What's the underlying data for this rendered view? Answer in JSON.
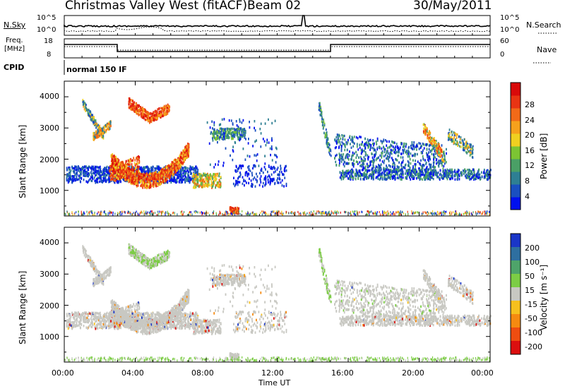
{
  "header": {
    "station": "Christmas Valley West (fitACF)",
    "beam": "Beam 02",
    "date": "30/May/2011"
  },
  "top_panels": {
    "nsky_label": "N.Sky",
    "nsky_tick_hi": "10^5",
    "nsky_tick_lo": "10^0",
    "nsearch_tick_hi": "10^5",
    "nsearch_tick_lo": "10^0",
    "nsearch_label": "N.Search",
    "freq_label_1": "Freq.",
    "freq_label_2": "[MHz]",
    "freq_tick_hi": "18",
    "freq_tick_lo": "8",
    "nave_tick_hi": "60",
    "nave_tick_lo": "0",
    "nave_label": "Nave",
    "cpid_label": "CPID",
    "cpid_value": "normal 150 IF"
  },
  "chart_data": [
    {
      "type": "heatmap",
      "name": "power",
      "ylabel": "Slant Range [km]",
      "yticks": [
        "1000",
        "2000",
        "3000",
        "4000"
      ],
      "ylim": [
        180,
        4500
      ],
      "colorbar_label": "Power [dB]",
      "colorbar_ticks": [
        "4",
        "8",
        "12",
        "16",
        "20",
        "24",
        "28"
      ],
      "colors": [
        "#0010ee",
        "#1a4fc0",
        "#2e7f93",
        "#4aa066",
        "#7cc433",
        "#f0d020",
        "#f6a11c",
        "#f26a18",
        "#e93413",
        "#d90a0a"
      ]
    },
    {
      "type": "heatmap",
      "name": "velocity",
      "ylabel": "Slant Range [km]",
      "yticks": [
        "1000",
        "2000",
        "3000",
        "4000"
      ],
      "ylim": [
        180,
        4500
      ],
      "colorbar_label": "Velocity [m s⁻¹]",
      "colorbar_ticks": [
        "200",
        "100",
        "50",
        "15",
        "-15",
        "-50",
        "-100",
        "-200"
      ],
      "colors": [
        "#1a36c8",
        "#2e6fa0",
        "#4ea46a",
        "#7ccd45",
        "#c8c8c2",
        "#f6c01e",
        "#f58a10",
        "#ef4d10",
        "#dc0f0f"
      ]
    }
  ],
  "x_axis": {
    "ticks": [
      "00:00",
      "04:00",
      "08:00",
      "12:00",
      "16:00",
      "20:00",
      "00:00"
    ],
    "label": "Time UT"
  }
}
